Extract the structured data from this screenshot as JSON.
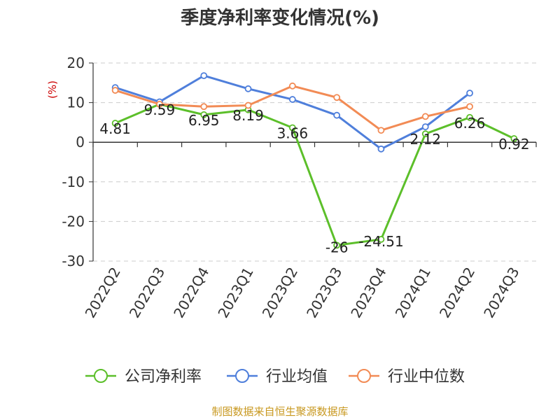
{
  "chart_data": {
    "type": "line",
    "title": "季度净利率变化情况(%)",
    "ylabel": "(%)",
    "xlabel": "",
    "categories": [
      "2022Q2",
      "2022Q3",
      "2022Q4",
      "2023Q1",
      "2023Q2",
      "2023Q3",
      "2023Q4",
      "2024Q1",
      "2024Q2",
      "2024Q3"
    ],
    "ylim": [
      -30,
      20
    ],
    "yticks": [
      20,
      10,
      0,
      -10,
      -20,
      -30
    ],
    "grid": true,
    "legend_position": "bottom",
    "series": [
      {
        "name": "公司净利率",
        "color": "#5cbf2a",
        "values": [
          4.81,
          9.59,
          6.95,
          8.19,
          3.66,
          -26,
          -24.51,
          2.12,
          6.26,
          0.92
        ],
        "labels": [
          "4.81",
          "9.59",
          "6.95",
          "8.19",
          "3.66",
          "-26",
          "-24.51",
          "2.12",
          "6.26",
          "0.92"
        ]
      },
      {
        "name": "行业均值",
        "color": "#4f7fdb",
        "values": [
          13.8,
          10.2,
          16.8,
          13.5,
          10.8,
          6.8,
          -1.7,
          3.9,
          12.4,
          null
        ]
      },
      {
        "name": "行业中位数",
        "color": "#f28b55",
        "values": [
          13.1,
          9.6,
          9.0,
          9.3,
          14.2,
          11.3,
          3.0,
          6.5,
          9.0,
          null
        ]
      }
    ]
  },
  "footer": {
    "source": "制图数据来自恒生聚源数据库"
  }
}
